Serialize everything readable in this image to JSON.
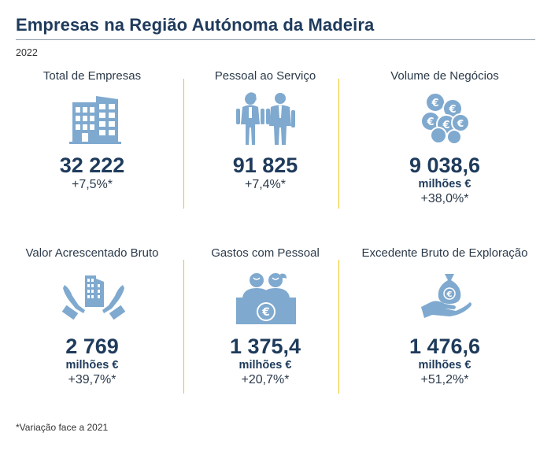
{
  "header": {
    "title": "Empresas na Região Autónoma da Madeira",
    "year": "2022"
  },
  "cards": [
    {
      "label": "Total de Empresas",
      "value": "32 222",
      "unit": "",
      "change": "+7,5%*",
      "icon": "building-icon"
    },
    {
      "label": "Pessoal ao Serviço",
      "value": "91 825",
      "unit": "",
      "change": "+7,4%*",
      "icon": "workers-icon"
    },
    {
      "label": "Volume de Negócios",
      "value": "9 038,6",
      "unit": "milhões €",
      "change": "+38,0%*",
      "icon": "euro-coins-icon"
    },
    {
      "label": "Valor Acrescentado Bruto",
      "value": "2 769",
      "unit": "milhões €",
      "change": "+39,7%*",
      "icon": "hands-building-icon"
    },
    {
      "label": "Gastos com Pessoal",
      "value": "1 375,4",
      "unit": "milhões €",
      "change": "+20,7%*",
      "icon": "staff-cost-icon"
    },
    {
      "label": "Excedente Bruto de Exploração",
      "value": "1 476,6",
      "unit": "milhões €",
      "change": "+51,2%*",
      "icon": "money-bag-hand-icon"
    }
  ],
  "footnote": "*Variação face a 2021",
  "colors": {
    "title": "#1f3b5c",
    "icon": "#7fa9cf",
    "divider": "#f0c419",
    "euro": "#ffffff"
  },
  "euro_symbol": "€"
}
